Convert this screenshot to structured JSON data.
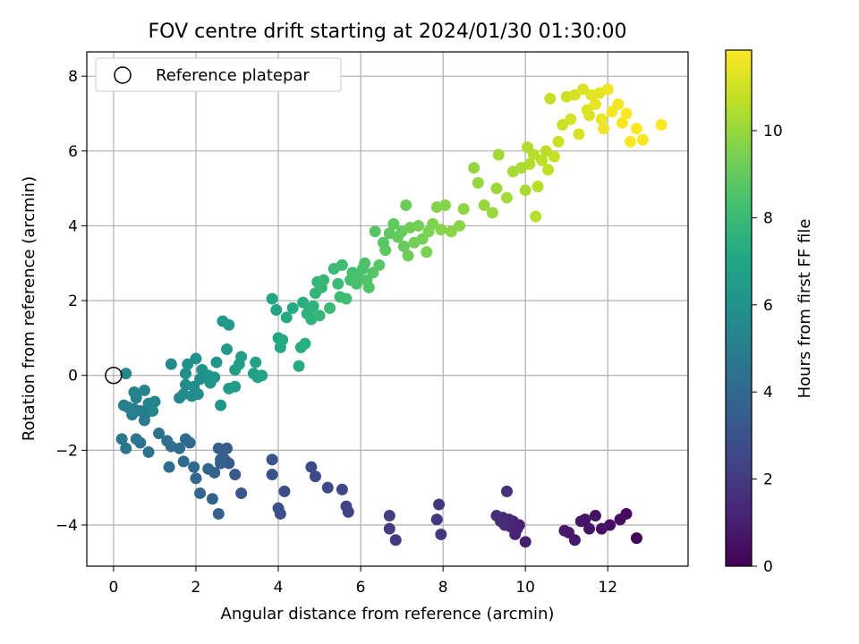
{
  "chart_data": {
    "type": "scatter",
    "title": "FOV centre drift starting at 2024/01/30 01:30:00",
    "xlabel": "Angular distance from reference (arcmin)",
    "ylabel": "Rotation from reference (arcmin)",
    "xlim": [
      -0.65,
      13.95
    ],
    "ylim": [
      -5.1,
      8.65
    ],
    "xticks": [
      0,
      2,
      4,
      6,
      8,
      10,
      12
    ],
    "yticks": [
      -4,
      -2,
      0,
      2,
      4,
      6,
      8
    ],
    "grid": true,
    "legend": {
      "position": "top-left",
      "entries": [
        "Reference platepar"
      ]
    },
    "reference_point": {
      "x": 0,
      "y": 0,
      "marker": "open-circle"
    },
    "colorbar": {
      "label": "Hours from first FF file",
      "range": [
        0,
        11.85
      ],
      "ticks": [
        0,
        2,
        4,
        6,
        8,
        10
      ],
      "colormap": "viridis"
    },
    "series": [
      {
        "points": [
          [
            12.7,
            -4.35,
            0.1
          ],
          [
            12.45,
            -3.7,
            0.3
          ],
          [
            12.3,
            -3.85,
            0.4
          ],
          [
            12.05,
            -4.0,
            0.45
          ],
          [
            11.85,
            -4.1,
            0.5
          ],
          [
            11.7,
            -3.75,
            0.55
          ],
          [
            11.55,
            -4.1,
            0.6
          ],
          [
            11.45,
            -3.85,
            0.65
          ],
          [
            11.35,
            -3.9,
            0.7
          ],
          [
            11.2,
            -4.4,
            0.75
          ],
          [
            11.05,
            -4.2,
            0.8
          ],
          [
            10.95,
            -4.15,
            0.85
          ],
          [
            10.0,
            -4.45,
            1.0
          ],
          [
            9.85,
            -4.0,
            1.05
          ],
          [
            9.8,
            -4.1,
            1.1
          ],
          [
            9.75,
            -4.25,
            1.15
          ],
          [
            9.7,
            -3.9,
            1.2
          ],
          [
            9.65,
            -4.05,
            1.25
          ],
          [
            9.6,
            -3.85,
            1.3
          ],
          [
            9.55,
            -3.95,
            1.35
          ],
          [
            9.5,
            -4.0,
            1.4
          ],
          [
            9.45,
            -3.8,
            1.45
          ],
          [
            9.4,
            -3.9,
            1.5
          ],
          [
            9.3,
            -3.75,
            1.55
          ],
          [
            9.55,
            -3.1,
            1.6
          ],
          [
            7.95,
            -4.25,
            1.85
          ],
          [
            7.85,
            -3.85,
            1.9
          ],
          [
            7.9,
            -3.45,
            1.95
          ],
          [
            6.85,
            -4.4,
            2.05
          ],
          [
            6.7,
            -4.1,
            2.1
          ],
          [
            6.7,
            -3.75,
            2.15
          ],
          [
            5.7,
            -3.65,
            2.3
          ],
          [
            5.65,
            -3.5,
            2.35
          ],
          [
            5.55,
            -3.05,
            2.45
          ],
          [
            5.2,
            -3.0,
            2.55
          ],
          [
            4.9,
            -2.7,
            2.65
          ],
          [
            4.8,
            -2.45,
            2.75
          ],
          [
            4.15,
            -3.1,
            2.85
          ],
          [
            4.05,
            -3.7,
            2.9
          ],
          [
            4.0,
            -3.55,
            2.95
          ],
          [
            3.85,
            -2.65,
            3.05
          ],
          [
            3.85,
            -2.25,
            3.1
          ],
          [
            3.1,
            -3.15,
            3.2
          ],
          [
            2.95,
            -2.65,
            3.3
          ],
          [
            2.8,
            -2.35,
            3.35
          ],
          [
            2.75,
            -1.95,
            3.4
          ],
          [
            2.7,
            -2.25,
            3.45
          ],
          [
            2.65,
            -2.0,
            3.5
          ],
          [
            2.6,
            -2.35,
            3.55
          ],
          [
            2.55,
            -1.95,
            3.6
          ],
          [
            2.6,
            -2.25,
            3.65
          ],
          [
            2.55,
            -3.7,
            3.7
          ],
          [
            2.4,
            -3.3,
            3.75
          ],
          [
            2.45,
            -2.6,
            3.8
          ],
          [
            2.3,
            -2.5,
            3.85
          ],
          [
            2.1,
            -3.15,
            3.9
          ],
          [
            2.0,
            -2.75,
            3.95
          ],
          [
            1.95,
            -2.45,
            4.0
          ],
          [
            1.85,
            -1.8,
            4.05
          ],
          [
            1.75,
            -1.7,
            4.1
          ],
          [
            1.7,
            -2.3,
            4.15
          ],
          [
            1.6,
            -1.95,
            4.2
          ],
          [
            1.4,
            -1.9,
            4.25
          ],
          [
            1.35,
            -2.45,
            4.3
          ],
          [
            1.3,
            -1.75,
            4.35
          ],
          [
            1.1,
            -1.55,
            4.45
          ],
          [
            0.85,
            -2.05,
            4.5
          ],
          [
            0.65,
            -1.8,
            4.55
          ],
          [
            0.55,
            -1.7,
            4.6
          ],
          [
            0.3,
            -1.95,
            4.65
          ],
          [
            0.2,
            -1.7,
            4.7
          ],
          [
            0.75,
            -1.2,
            4.8
          ],
          [
            0.8,
            -1.0,
            4.85
          ],
          [
            0.65,
            -0.95,
            4.9
          ],
          [
            0.5,
            -0.9,
            4.95
          ],
          [
            0.45,
            -1.05,
            5.0
          ],
          [
            0.35,
            -0.85,
            5.05
          ],
          [
            0.25,
            -0.8,
            5.1
          ],
          [
            0.55,
            -0.6,
            5.15
          ],
          [
            0.5,
            -0.45,
            5.2
          ],
          [
            0.75,
            -0.4,
            5.25
          ],
          [
            0.85,
            -0.75,
            5.3
          ],
          [
            1.0,
            -0.7,
            5.35
          ],
          [
            0.95,
            -0.95,
            5.4
          ],
          [
            0.3,
            0.05,
            5.45
          ],
          [
            1.4,
            0.3,
            5.5
          ],
          [
            1.6,
            -0.6,
            5.55
          ],
          [
            1.7,
            -0.5,
            5.6
          ],
          [
            1.75,
            -0.25,
            5.65
          ],
          [
            1.9,
            -0.55,
            5.7
          ],
          [
            1.95,
            -0.3,
            5.75
          ],
          [
            2.05,
            -0.5,
            5.8
          ],
          [
            2.1,
            -0.1,
            5.85
          ],
          [
            1.75,
            0.05,
            5.9
          ],
          [
            1.8,
            0.3,
            5.95
          ],
          [
            2.0,
            0.45,
            6.0
          ],
          [
            2.15,
            0.15,
            6.05
          ],
          [
            2.3,
            0.0,
            6.1
          ],
          [
            2.35,
            -0.2,
            6.15
          ],
          [
            2.45,
            -0.05,
            6.2
          ],
          [
            2.5,
            0.35,
            6.25
          ],
          [
            2.6,
            -0.8,
            6.3
          ],
          [
            2.65,
            1.45,
            6.35
          ],
          [
            2.8,
            1.35,
            6.4
          ],
          [
            2.75,
            0.7,
            6.45
          ],
          [
            2.8,
            -0.35,
            6.5
          ],
          [
            2.95,
            -0.3,
            6.55
          ],
          [
            2.95,
            0.15,
            6.6
          ],
          [
            3.05,
            0.3,
            6.65
          ],
          [
            3.1,
            0.5,
            6.7
          ],
          [
            3.4,
            0.05,
            6.75
          ],
          [
            3.45,
            0.35,
            6.8
          ],
          [
            3.5,
            -0.05,
            6.85
          ],
          [
            3.6,
            0.0,
            6.9
          ],
          [
            3.85,
            2.05,
            6.95
          ],
          [
            3.95,
            1.75,
            7.0
          ],
          [
            4.0,
            1.0,
            7.05
          ],
          [
            4.05,
            0.75,
            7.1
          ],
          [
            4.1,
            0.95,
            7.15
          ],
          [
            4.2,
            1.55,
            7.2
          ],
          [
            4.35,
            1.8,
            7.25
          ],
          [
            4.5,
            0.25,
            7.3
          ],
          [
            4.55,
            0.75,
            7.35
          ],
          [
            4.6,
            1.95,
            7.4
          ],
          [
            4.65,
            0.85,
            7.45
          ],
          [
            4.7,
            1.65,
            7.5
          ],
          [
            4.75,
            1.75,
            7.55
          ],
          [
            4.8,
            1.5,
            7.6
          ],
          [
            4.85,
            1.85,
            7.65
          ],
          [
            4.9,
            2.2,
            7.7
          ],
          [
            4.95,
            2.5,
            7.75
          ],
          [
            5.0,
            1.6,
            7.8
          ],
          [
            5.05,
            2.35,
            7.85
          ],
          [
            5.1,
            2.55,
            7.9
          ],
          [
            5.25,
            1.8,
            7.95
          ],
          [
            5.35,
            2.85,
            8.0
          ],
          [
            5.45,
            2.45,
            8.05
          ],
          [
            5.5,
            2.1,
            8.1
          ],
          [
            5.55,
            2.95,
            8.15
          ],
          [
            5.65,
            2.05,
            8.2
          ],
          [
            5.75,
            2.55,
            8.25
          ],
          [
            5.8,
            2.75,
            8.3
          ],
          [
            5.9,
            2.45,
            8.35
          ],
          [
            5.95,
            2.6,
            8.4
          ],
          [
            6.05,
            2.85,
            8.45
          ],
          [
            6.1,
            3.0,
            8.5
          ],
          [
            6.15,
            2.55,
            8.55
          ],
          [
            6.2,
            2.35,
            8.6
          ],
          [
            6.3,
            2.75,
            8.65
          ],
          [
            6.35,
            3.85,
            8.7
          ],
          [
            6.45,
            2.95,
            8.75
          ],
          [
            6.55,
            3.55,
            8.8
          ],
          [
            6.6,
            3.35,
            8.85
          ],
          [
            6.7,
            3.8,
            8.9
          ],
          [
            6.8,
            4.05,
            8.95
          ],
          [
            6.9,
            3.7,
            9.0
          ],
          [
            7.0,
            3.85,
            9.05
          ],
          [
            7.05,
            3.45,
            9.1
          ],
          [
            7.1,
            4.55,
            9.15
          ],
          [
            7.15,
            3.2,
            9.2
          ],
          [
            7.2,
            3.95,
            9.25
          ],
          [
            7.3,
            3.55,
            9.3
          ],
          [
            7.4,
            4.0,
            9.35
          ],
          [
            7.5,
            3.65,
            9.4
          ],
          [
            7.6,
            3.3,
            9.45
          ],
          [
            7.65,
            3.85,
            9.5
          ],
          [
            7.75,
            4.05,
            9.55
          ],
          [
            7.85,
            4.5,
            9.6
          ],
          [
            7.95,
            3.9,
            9.65
          ],
          [
            8.05,
            4.55,
            9.7
          ],
          [
            8.2,
            3.85,
            9.75
          ],
          [
            8.4,
            4.0,
            9.8
          ],
          [
            8.5,
            4.45,
            9.85
          ],
          [
            8.75,
            5.55,
            9.9
          ],
          [
            8.85,
            5.15,
            9.95
          ],
          [
            9.0,
            4.55,
            10.0
          ],
          [
            9.2,
            4.35,
            10.05
          ],
          [
            9.3,
            5.0,
            10.1
          ],
          [
            9.35,
            5.9,
            10.15
          ],
          [
            9.55,
            4.75,
            10.2
          ],
          [
            9.7,
            5.45,
            10.25
          ],
          [
            9.9,
            5.55,
            10.3
          ],
          [
            10.0,
            4.95,
            10.35
          ],
          [
            10.05,
            6.1,
            10.4
          ],
          [
            10.1,
            5.65,
            10.45
          ],
          [
            10.2,
            5.9,
            10.5
          ],
          [
            10.25,
            4.25,
            10.55
          ],
          [
            10.3,
            5.05,
            10.6
          ],
          [
            10.4,
            5.75,
            10.65
          ],
          [
            10.5,
            6.0,
            10.7
          ],
          [
            10.55,
            5.5,
            10.75
          ],
          [
            10.6,
            7.4,
            10.8
          ],
          [
            10.7,
            5.85,
            10.85
          ],
          [
            10.8,
            6.25,
            10.9
          ],
          [
            10.9,
            6.7,
            10.95
          ],
          [
            11.0,
            7.45,
            11.0
          ],
          [
            11.1,
            6.85,
            11.05
          ],
          [
            11.2,
            7.5,
            11.1
          ],
          [
            11.3,
            6.45,
            11.15
          ],
          [
            11.4,
            7.65,
            11.2
          ],
          [
            11.5,
            7.1,
            11.25
          ],
          [
            11.55,
            6.95,
            11.3
          ],
          [
            11.6,
            7.5,
            11.35
          ],
          [
            11.7,
            7.25,
            11.4
          ],
          [
            11.8,
            7.55,
            11.45
          ],
          [
            11.85,
            6.85,
            11.5
          ],
          [
            11.9,
            6.6,
            11.55
          ],
          [
            12.0,
            7.65,
            11.6
          ],
          [
            12.1,
            7.05,
            11.65
          ],
          [
            12.25,
            7.25,
            11.7
          ],
          [
            12.35,
            6.75,
            11.75
          ],
          [
            12.45,
            7.0,
            11.8
          ],
          [
            12.55,
            6.25,
            11.85
          ],
          [
            12.7,
            6.6,
            11.8
          ],
          [
            12.85,
            6.3,
            11.75
          ],
          [
            13.3,
            6.7,
            11.8
          ]
        ]
      }
    ]
  }
}
